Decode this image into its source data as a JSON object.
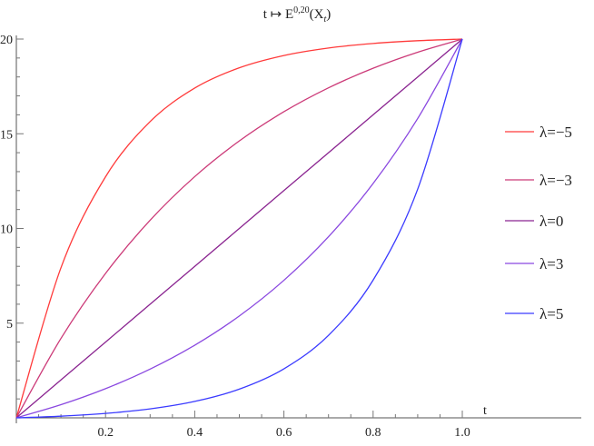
{
  "chart_data": {
    "type": "line",
    "title": "t ↦ E^{0,20}(X_t)",
    "title_parts": {
      "pre": "t ↦ E",
      "sup": "0,20",
      "post": "(X",
      "sub": "t",
      "end": ")"
    },
    "xlabel": "t",
    "ylabel": "",
    "xlim": [
      0,
      1
    ],
    "ylim": [
      0,
      20
    ],
    "x_ticks": [
      "0.2",
      "0.4",
      "0.6",
      "0.8",
      "1.0"
    ],
    "y_ticks": [
      "5",
      "10",
      "15",
      "20"
    ],
    "grid": false,
    "legend_position": "right",
    "x": [
      0,
      0.1,
      0.2,
      0.3,
      0.4,
      0.5,
      0.6,
      0.7,
      0.8,
      0.9,
      1.0
    ],
    "series": [
      {
        "name": "λ=−5",
        "color": "#ff3a3a",
        "values": [
          0,
          7.923,
          12.728,
          15.643,
          17.411,
          18.483,
          19.133,
          19.528,
          19.767,
          19.912,
          20
        ]
      },
      {
        "name": "λ=−3",
        "color": "#cc3a78",
        "values": [
          0,
          4.193,
          7.626,
          10.436,
          12.737,
          14.621,
          16.164,
          17.426,
          18.46,
          19.307,
          20
        ]
      },
      {
        "name": "λ=0",
        "color": "#8a2490",
        "values": [
          0,
          2,
          4,
          6,
          8,
          10,
          12,
          14,
          16,
          18,
          20
        ]
      },
      {
        "name": "λ=3",
        "color": "#8a48e0",
        "values": [
          0,
          0.693,
          1.54,
          2.574,
          3.836,
          5.379,
          7.263,
          9.564,
          12.374,
          15.807,
          20
        ]
      },
      {
        "name": "λ=5",
        "color": "#3a3aff",
        "values": [
          0,
          0.088,
          0.233,
          0.472,
          0.867,
          1.517,
          2.589,
          4.357,
          7.272,
          12.077,
          20
        ]
      }
    ]
  }
}
